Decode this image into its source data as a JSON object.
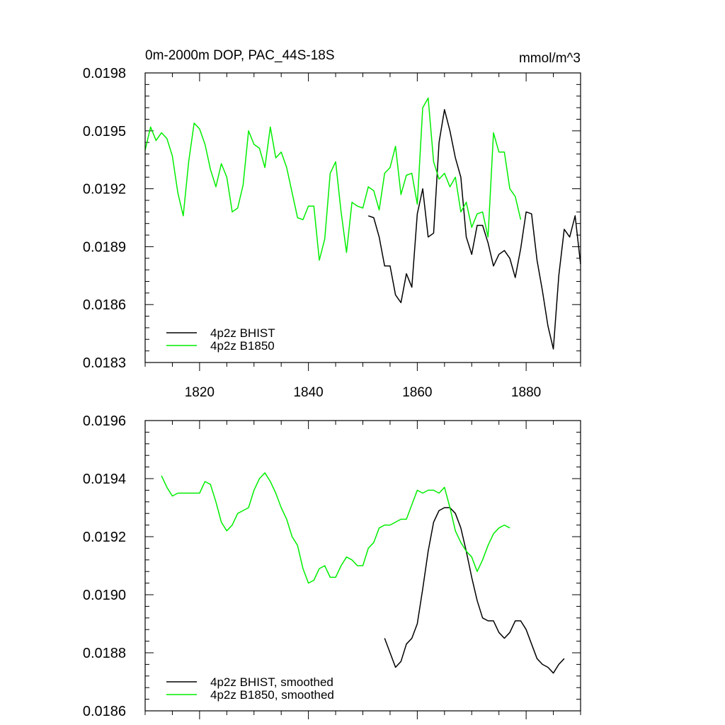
{
  "chart_data": [
    {
      "type": "line",
      "title": "0m-2000m DOP, PAC_44S-18S",
      "units": "mmol/m^3",
      "xlabel": "",
      "ylabel": "",
      "xlim": [
        1810,
        1890
      ],
      "ylim": [
        0.0183,
        0.0198
      ],
      "xticks": [
        1820,
        1840,
        1860,
        1880
      ],
      "xtick_labels": [
        "1820",
        "1840",
        "1860",
        "1880"
      ],
      "yticks": [
        0.0183,
        0.0186,
        0.0189,
        0.0192,
        0.0195,
        0.0198
      ],
      "ytick_labels": [
        "0.0183",
        "0.0186",
        "0.0189",
        "0.0192",
        "0.0195",
        "0.0198"
      ],
      "legend_position": "bottom-left",
      "series": [
        {
          "name": "4p2z BHIST",
          "color": "#000000",
          "x_start": 1851,
          "values": [
            0.01906,
            0.01905,
            0.01895,
            0.0188,
            0.0188,
            0.01865,
            0.01861,
            0.01876,
            0.01869,
            0.01907,
            0.0192,
            0.01895,
            0.01897,
            0.01944,
            0.01961,
            0.0195,
            0.01936,
            0.01926,
            0.01895,
            0.01886,
            0.01901,
            0.01901,
            0.01892,
            0.0188,
            0.01886,
            0.01888,
            0.01884,
            0.01874,
            0.01889,
            0.01908,
            0.01907,
            0.01883,
            0.01867,
            0.01849,
            0.01837,
            0.01875,
            0.01899,
            0.01895,
            0.01906,
            0.01881
          ]
        },
        {
          "name": "4p2z B1850",
          "color": "#00ee00",
          "x_start": 1810,
          "values": [
            0.0194,
            0.01952,
            0.01945,
            0.01949,
            0.01946,
            0.01937,
            0.01918,
            0.01906,
            0.01934,
            0.01954,
            0.01951,
            0.01943,
            0.0193,
            0.01921,
            0.01933,
            0.01926,
            0.01908,
            0.0191,
            0.01922,
            0.0195,
            0.01943,
            0.01941,
            0.01931,
            0.01952,
            0.01936,
            0.01939,
            0.01931,
            0.01918,
            0.01905,
            0.01904,
            0.01911,
            0.01911,
            0.01883,
            0.01894,
            0.01928,
            0.01934,
            0.01908,
            0.01887,
            0.01913,
            0.01911,
            0.0191,
            0.01921,
            0.01919,
            0.01909,
            0.01928,
            0.01931,
            0.01942,
            0.01917,
            0.01927,
            0.01928,
            0.01912,
            0.01962,
            0.01967,
            0.01934,
            0.01925,
            0.01928,
            0.01921,
            0.01926,
            0.01908,
            0.01913,
            0.019,
            0.01907,
            0.01908,
            0.01895,
            0.01949,
            0.01939,
            0.01939,
            0.0192,
            0.01916,
            0.01904
          ]
        }
      ]
    },
    {
      "type": "line",
      "title": "",
      "xlabel": "",
      "ylabel": "",
      "xlim": [
        1810,
        1890
      ],
      "ylim": [
        0.0186,
        0.0196
      ],
      "xticks": [
        1820,
        1840,
        1860,
        1880
      ],
      "xtick_labels": [],
      "yticks": [
        0.0186,
        0.0188,
        0.019,
        0.0192,
        0.0194,
        0.0196
      ],
      "ytick_labels": [
        "0.0186",
        "0.0188",
        "0.0190",
        "0.0192",
        "0.0194",
        "0.0196"
      ],
      "legend_position": "bottom-left",
      "series": [
        {
          "name": "4p2z BHIST, smoothed",
          "color": "#000000",
          "x_start": 1854,
          "values": [
            0.01885,
            0.0188,
            0.01875,
            0.01877,
            0.01883,
            0.01885,
            0.0189,
            0.01902,
            0.01915,
            0.01925,
            0.01929,
            0.0193,
            0.0193,
            0.01928,
            0.01923,
            0.01915,
            0.01906,
            0.01898,
            0.01892,
            0.01891,
            0.01891,
            0.01887,
            0.01885,
            0.01887,
            0.01891,
            0.01891,
            0.01888,
            0.01883,
            0.01878,
            0.01876,
            0.01875,
            0.01873,
            0.01876,
            0.01878
          ]
        },
        {
          "name": "4p2z B1850, smoothed",
          "color": "#00ee00",
          "x_start": 1813,
          "values": [
            0.01941,
            0.01937,
            0.01934,
            0.01935,
            0.01935,
            0.01935,
            0.01935,
            0.01935,
            0.01939,
            0.01938,
            0.01932,
            0.01925,
            0.01922,
            0.01924,
            0.01928,
            0.01929,
            0.0193,
            0.01936,
            0.0194,
            0.01942,
            0.01939,
            0.01935,
            0.0193,
            0.01926,
            0.0192,
            0.01917,
            0.01909,
            0.01904,
            0.01905,
            0.01909,
            0.0191,
            0.01906,
            0.01906,
            0.0191,
            0.01913,
            0.01912,
            0.0191,
            0.0191,
            0.01916,
            0.01918,
            0.01923,
            0.01924,
            0.01924,
            0.01925,
            0.01926,
            0.01926,
            0.01931,
            0.01936,
            0.01935,
            0.01936,
            0.01936,
            0.01935,
            0.01937,
            0.0193,
            0.01922,
            0.01918,
            0.01915,
            0.01913,
            0.01908,
            0.01912,
            0.01917,
            0.01921,
            0.01923,
            0.01924,
            0.01923
          ]
        }
      ]
    }
  ]
}
